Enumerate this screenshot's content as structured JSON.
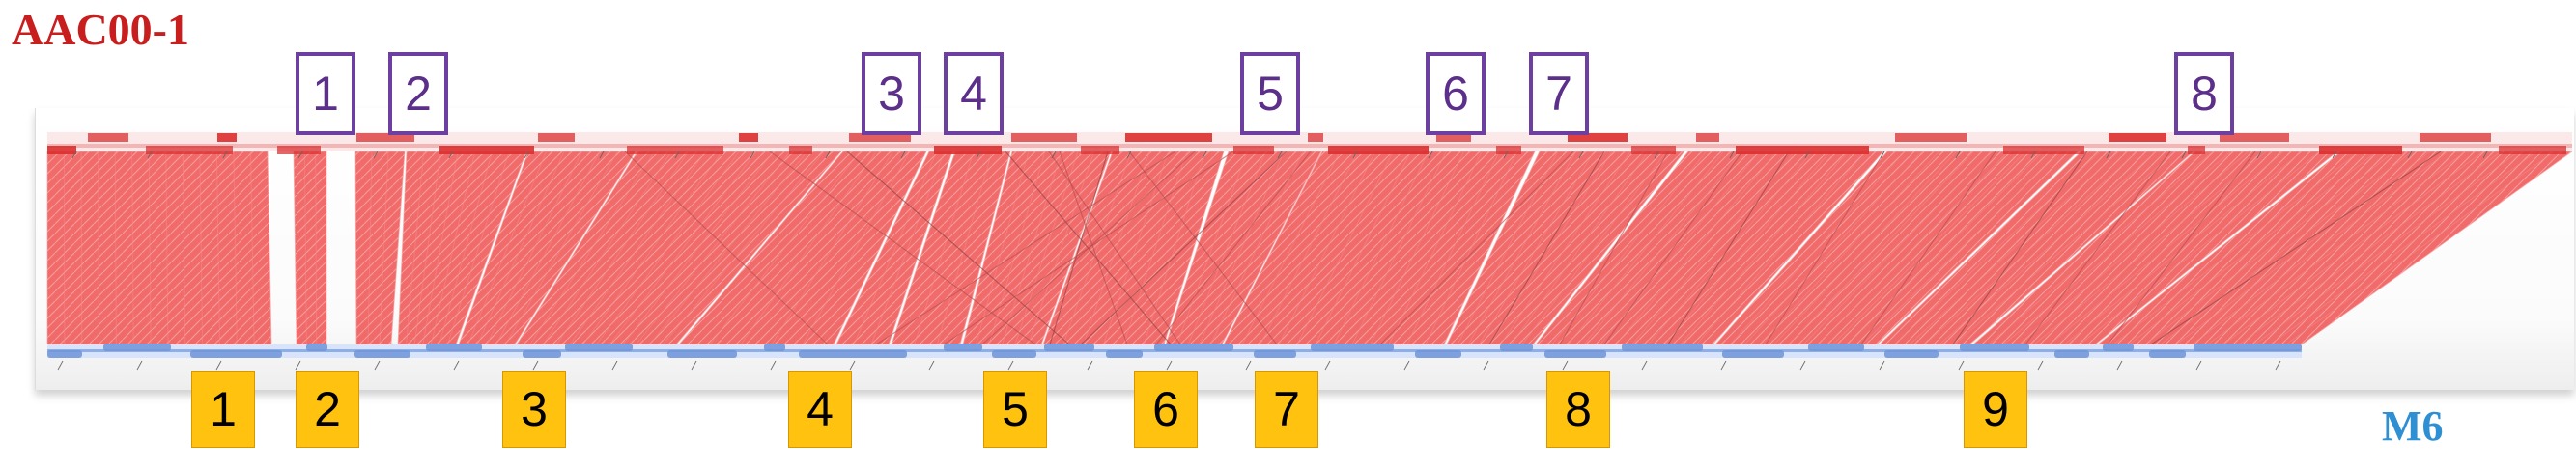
{
  "titles": {
    "top_genome": "AAC00-1",
    "bottom_genome": "M6"
  },
  "colors": {
    "top_title": "#c81e1e",
    "bottom_title": "#2f8fd3",
    "top_marker_border": "#6d3fa0",
    "top_marker_text": "#5b2f8a",
    "bottom_marker_fill": "#ffc20e",
    "synteny_fill": "#ef4b4b",
    "synteny_line": "#f48a8a",
    "top_track": "#f08a8a",
    "top_feature": "#db2f2f",
    "bottom_track": "#a9c3ec",
    "bottom_feature": "#6f95d8",
    "panel_bg": "#fafafa",
    "gap_fill": "#ffffff"
  },
  "top_markers": [
    {
      "label": "1"
    },
    {
      "label": "2"
    },
    {
      "label": "3"
    },
    {
      "label": "4"
    },
    {
      "label": "5"
    },
    {
      "label": "6"
    },
    {
      "label": "7"
    },
    {
      "label": "8"
    }
  ],
  "bottom_markers": [
    {
      "label": "1"
    },
    {
      "label": "2"
    },
    {
      "label": "3"
    },
    {
      "label": "4"
    },
    {
      "label": "5"
    },
    {
      "label": "6"
    },
    {
      "label": "7"
    },
    {
      "label": "8"
    },
    {
      "label": "9"
    }
  ]
}
